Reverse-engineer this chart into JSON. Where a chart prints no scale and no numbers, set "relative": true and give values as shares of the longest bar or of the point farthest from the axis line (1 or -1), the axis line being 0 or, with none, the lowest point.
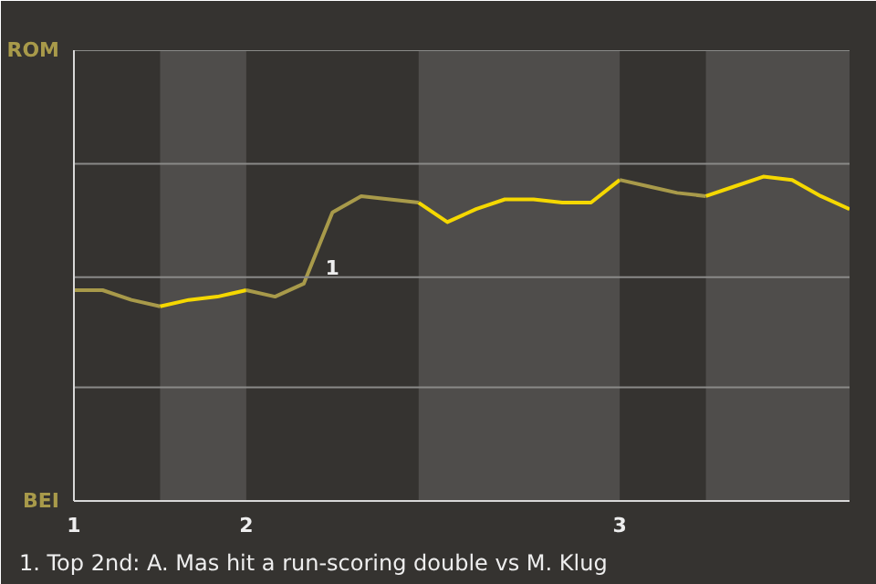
{
  "chart_data": {
    "type": "line",
    "relative": true,
    "categories": [
      "1",
      null,
      null,
      null,
      null,
      null,
      "2",
      null,
      null,
      null,
      null,
      null,
      null,
      null,
      null,
      null,
      null,
      null,
      null,
      "3",
      null,
      null,
      null,
      null,
      null,
      null,
      null,
      null
    ],
    "marker": "none",
    "line_style": "solid",
    "ref_lines": [
      {
        "axis": "y",
        "value": 0.35,
        "color": "#8a8a88"
      },
      {
        "axis": "y",
        "value": 0.69,
        "color": "#8a8a88"
      },
      {
        "axis": "y",
        "value": 1.04,
        "color": "#8a8a88"
      }
    ],
    "series": [
      {
        "color": "#a89a4a",
        "values": [
          0.65,
          0.65,
          0.62,
          0.6,
          null,
          null,
          null,
          null,
          null,
          null,
          null,
          null,
          null,
          null,
          null,
          null,
          null,
          null,
          null,
          null,
          null,
          null,
          null,
          null,
          null,
          null,
          null,
          null
        ]
      },
      {
        "color": "#f5d800",
        "values": [
          null,
          null,
          null,
          0.6,
          0.62,
          0.63,
          0.65,
          null,
          null,
          null,
          null,
          null,
          null,
          null,
          null,
          null,
          null,
          null,
          null,
          null,
          null,
          null,
          null,
          null,
          null,
          null,
          null,
          null
        ]
      },
      {
        "color": "#a89a4a",
        "values": [
          null,
          null,
          null,
          null,
          null,
          null,
          0.65,
          0.63,
          0.67,
          0.89,
          0.94,
          0.93,
          0.92,
          null,
          null,
          null,
          null,
          null,
          null,
          null,
          null,
          null,
          null,
          null,
          null,
          null,
          null,
          null
        ]
      },
      {
        "color": "#f5d800",
        "values": [
          null,
          null,
          null,
          null,
          null,
          null,
          null,
          null,
          null,
          null,
          null,
          null,
          0.92,
          0.86,
          0.9,
          0.93,
          0.93,
          0.92,
          0.92,
          0.99,
          null,
          null,
          null,
          null,
          null,
          null,
          null,
          null
        ]
      },
      {
        "color": "#a89a4a",
        "values": [
          null,
          null,
          null,
          null,
          null,
          null,
          null,
          null,
          null,
          null,
          null,
          null,
          null,
          null,
          null,
          null,
          null,
          null,
          null,
          0.99,
          0.97,
          0.95,
          0.94,
          null,
          null,
          null,
          null,
          null
        ]
      },
      {
        "color": "#f5d800",
        "values": [
          null,
          null,
          null,
          null,
          null,
          null,
          null,
          null,
          null,
          null,
          null,
          null,
          null,
          null,
          null,
          null,
          null,
          null,
          null,
          null,
          null,
          null,
          0.94,
          0.97,
          1,
          0.99,
          0.94,
          0.9
        ]
      }
    ],
    "annotations": [
      "ROM",
      "BEI",
      "1",
      "1. Top 2nd: A. Mas hit a run-scoring double vs M. Klug"
    ]
  }
}
